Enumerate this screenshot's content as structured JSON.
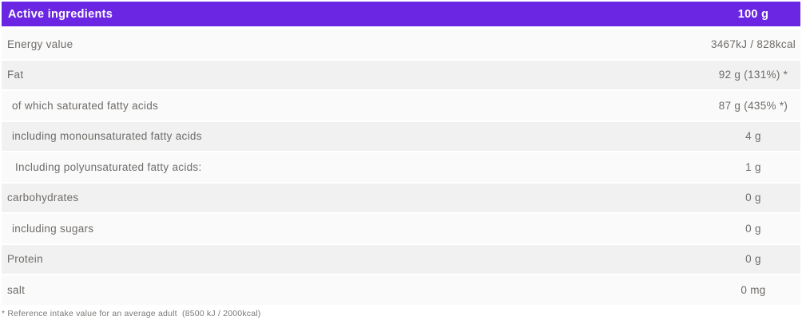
{
  "header": {
    "label": "Active ingredients",
    "amount": "100 g"
  },
  "rows": [
    {
      "label": "Energy value",
      "value": "3467kJ / 828kcal"
    },
    {
      "label": "Fat",
      "value": "92 g (131%) *"
    },
    {
      "label": "of which saturated fatty acids",
      "value": "87 g (435% *)"
    },
    {
      "label": "including monounsaturated fatty acids",
      "value": "4 g"
    },
    {
      "label": "Including polyunsaturated fatty acids:",
      "value": "1 g"
    },
    {
      "label": "carbohydrates",
      "value": "0 g"
    },
    {
      "label": "including sugars",
      "value": "0 g"
    },
    {
      "label": "Protein",
      "value": "0 g"
    },
    {
      "label": "salt",
      "value": "0 mg"
    }
  ],
  "footnote": "* Reference intake value for an average adult  (8500 kJ / 2000kcal)",
  "colors": {
    "header_bg": "#6a26e3",
    "header_text": "#ffffff",
    "row_light": "#fafafa",
    "row_dark": "#f1f1f1",
    "row_text": "#6f6c69",
    "footnote_text": "#7c7a77"
  }
}
